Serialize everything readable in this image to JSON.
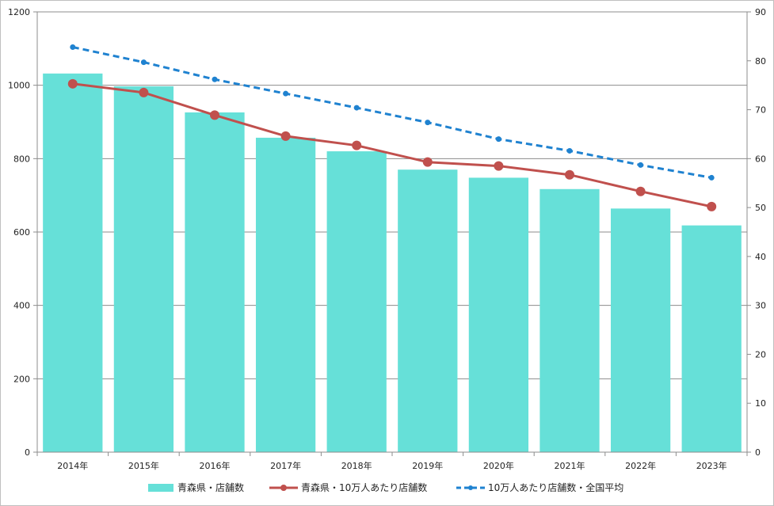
{
  "chart_data": {
    "type": "bar",
    "categories": [
      "2014年",
      "2015年",
      "2016年",
      "2017年",
      "2018年",
      "2019年",
      "2020年",
      "2021年",
      "2022年",
      "2023年"
    ],
    "series": [
      {
        "name": "青森県・店舗数",
        "type": "bar",
        "axis": "left",
        "values": [
          1032,
          997,
          926,
          857,
          820,
          770,
          748,
          717,
          664,
          618
        ],
        "color": "#66e0d8"
      },
      {
        "name": "青森県・10万人あたり店舗数",
        "type": "line",
        "axis": "right",
        "values": [
          75.3,
          73.5,
          68.9,
          64.6,
          62.7,
          59.3,
          58.5,
          56.7,
          53.3,
          50.2
        ],
        "color": "#c0504d"
      },
      {
        "name": "10万人あたり店舗数・全国平均",
        "type": "line-dashed",
        "axis": "right",
        "values": [
          82.8,
          79.7,
          76.2,
          73.3,
          70.4,
          67.4,
          64.0,
          61.6,
          58.7,
          56.1
        ],
        "color": "#1f82d0"
      }
    ],
    "ylim_left": [
      0,
      1200
    ],
    "ylim_right": [
      0,
      90
    ],
    "yticks_left": [
      "0",
      "200",
      "400",
      "600",
      "800",
      "1000",
      "1200"
    ],
    "yticks_right": [
      "0",
      "10",
      "20",
      "30",
      "40",
      "50",
      "60",
      "70",
      "80",
      "90"
    ],
    "title": "",
    "xlabel": "",
    "ylabel": "",
    "grid": true,
    "legend_position": "bottom"
  }
}
